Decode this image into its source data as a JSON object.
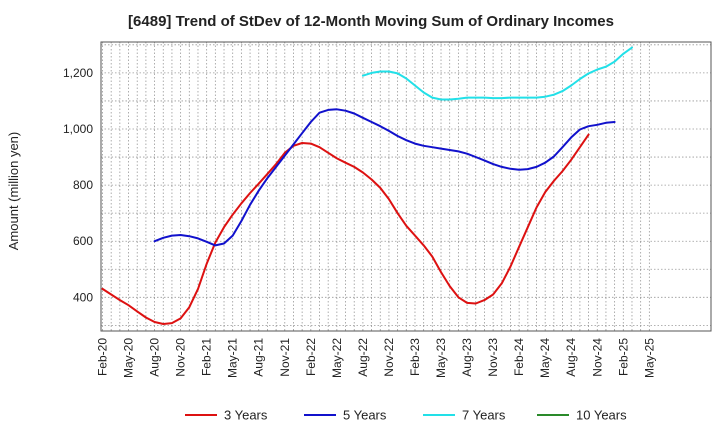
{
  "chart_data": {
    "type": "line",
    "title": "[6489]  Trend of StDev of 12-Month Moving Sum of Ordinary Incomes",
    "xlabel": "",
    "ylabel": "Amount (million yen)",
    "x_ticks": [
      "Feb-20",
      "May-20",
      "Aug-20",
      "Nov-20",
      "Feb-21",
      "May-21",
      "Aug-21",
      "Nov-21",
      "Feb-22",
      "May-22",
      "Aug-22",
      "Nov-22",
      "Feb-23",
      "May-23",
      "Aug-23",
      "Nov-23",
      "Feb-24",
      "May-24",
      "Aug-24",
      "Nov-24",
      "Feb-25",
      "May-25"
    ],
    "y_ticks": [
      400,
      600,
      800,
      1000,
      1200
    ],
    "y_tick_labels": [
      "400",
      "600",
      "800",
      "1,000",
      "1,200"
    ],
    "ylim": [
      280,
      1310
    ],
    "grid": true,
    "legend_position": "bottom",
    "series": [
      {
        "name": "3 Years",
        "color": "#dd1111",
        "start_index": 0,
        "values": [
          430,
          410,
          390,
          372,
          350,
          328,
          312,
          305,
          308,
          325,
          365,
          430,
          520,
          595,
          650,
          695,
          735,
          772,
          805,
          840,
          875,
          915,
          940,
          950,
          948,
          935,
          915,
          895,
          880,
          865,
          845,
          820,
          790,
          750,
          700,
          655,
          620,
          585,
          545,
          490,
          440,
          400,
          380,
          378,
          390,
          410,
          450,
          510,
          580,
          650,
          720,
          775,
          815,
          850,
          890,
          935,
          980
        ]
      },
      {
        "name": "5 Years",
        "color": "#1111cc",
        "start_index": 6,
        "values": [
          600,
          612,
          620,
          622,
          618,
          610,
          598,
          585,
          592,
          620,
          672,
          730,
          780,
          825,
          865,
          905,
          945,
          985,
          1025,
          1058,
          1068,
          1070,
          1065,
          1055,
          1040,
          1025,
          1010,
          993,
          975,
          960,
          948,
          940,
          935,
          930,
          925,
          920,
          912,
          900,
          888,
          875,
          865,
          858,
          855,
          857,
          865,
          880,
          902,
          935,
          970,
          998,
          1010,
          1015,
          1022,
          1025
        ]
      },
      {
        "name": "7 Years",
        "color": "#22e0e8",
        "start_index": 30,
        "values": [
          1190,
          1200,
          1205,
          1205,
          1198,
          1180,
          1155,
          1130,
          1112,
          1105,
          1105,
          1108,
          1112,
          1112,
          1112,
          1110,
          1110,
          1112,
          1112,
          1112,
          1112,
          1115,
          1122,
          1135,
          1155,
          1178,
          1198,
          1212,
          1222,
          1240,
          1268,
          1290
        ]
      },
      {
        "name": "10 Years",
        "color": "#2a8a2a",
        "start_index": 0,
        "values": []
      }
    ]
  }
}
